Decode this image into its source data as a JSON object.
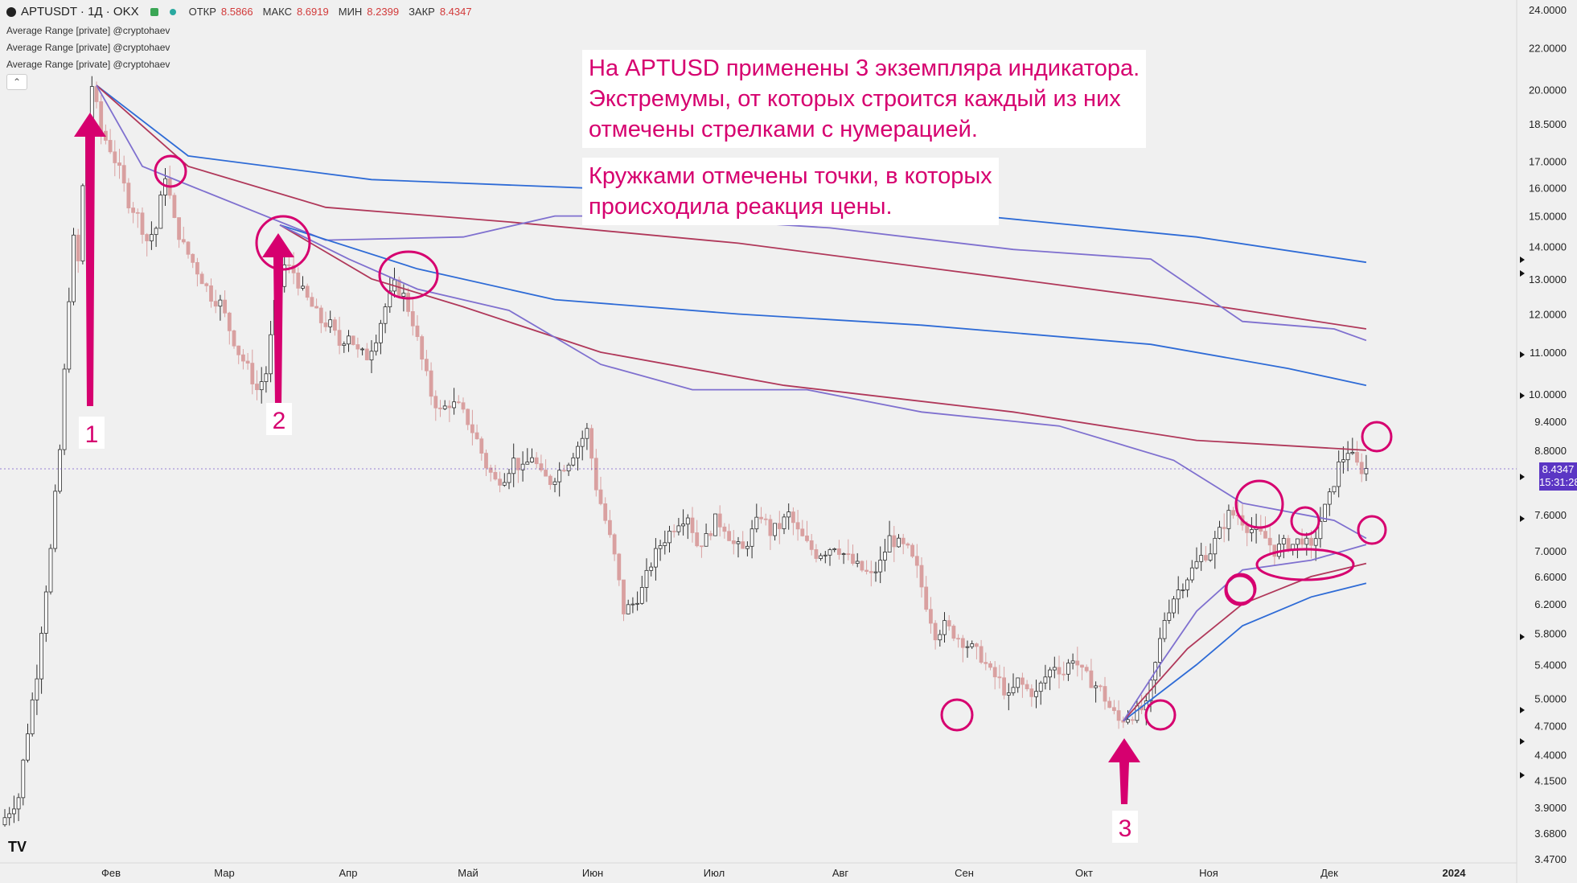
{
  "header": {
    "symbol": "APTUSDT · 1Д · OKX",
    "open_label": "ОТКР",
    "open_value": "8.5866",
    "high_label": "МАКС",
    "high_value": "8.6919",
    "low_label": "МИН",
    "low_value": "8.2399",
    "close_label": "ЗАКР",
    "close_value": "8.4347"
  },
  "indicators": [
    "Average Range [private] @cryptohaev",
    "Average Range [private] @cryptohaev",
    "Average Range [private] @cryptohaev"
  ],
  "collapse_glyph": "⌃",
  "notes": {
    "note1_lines": [
      "На APTUSD применены 3 экземпляра индикатора.",
      "Экстремумы, от которых строится каждый из них",
      "отмечены стрелками с нумерацией."
    ],
    "note2_lines": [
      "Кружками отмечены точки, в которых",
      "происходила реакция цены."
    ]
  },
  "arrow_labels": [
    "1",
    "2",
    "3"
  ],
  "price_badge": {
    "price": "8.4347",
    "timer": "15:31:28"
  },
  "logo": "TV",
  "colors": {
    "background": "#f0f0f0",
    "up_candle": "#2e2e2e",
    "down_candle": "#d9a0a0",
    "annotation": "#d6006f",
    "band_blue": "#2e6bd6",
    "band_red": "#b0385a",
    "band_purple": "#7f70cf",
    "badge": "#5b36c4"
  },
  "chart_data": {
    "type": "candlestick",
    "title": "",
    "y_scale": "log",
    "y_tick_labels": [
      "24.0000",
      "22.0000",
      "20.0000",
      "18.5000",
      "17.0000",
      "16.0000",
      "15.0000",
      "14.0000",
      "13.0000",
      "12.0000",
      "11.0000",
      "10.0000",
      "9.4000",
      "8.8000",
      "7.6000",
      "7.0000",
      "6.6000",
      "6.2000",
      "5.8000",
      "5.4000",
      "5.0000",
      "4.7000",
      "4.4000",
      "4.1500",
      "3.9000",
      "3.6800",
      "3.4700"
    ],
    "x_tick_labels": [
      "Фев",
      "Мар",
      "Апр",
      "Май",
      "Июн",
      "Июл",
      "Авг",
      "Сен",
      "Окт",
      "Ноя",
      "Дек",
      "2024"
    ],
    "price_path": [
      [
        0,
        3.75
      ],
      [
        4,
        4.0
      ],
      [
        8,
        5.3
      ],
      [
        11,
        7.0
      ],
      [
        13,
        8.8
      ],
      [
        14,
        10.5
      ],
      [
        15,
        12.5
      ],
      [
        16,
        14.2
      ],
      [
        17,
        13.5
      ],
      [
        18,
        16.0
      ],
      [
        19,
        18.0
      ],
      [
        20,
        20.2
      ],
      [
        22,
        18.2
      ],
      [
        24,
        17.5
      ],
      [
        26,
        16.6
      ],
      [
        28,
        15.5
      ],
      [
        30,
        15.0
      ],
      [
        32,
        14.2
      ],
      [
        34,
        14.6
      ],
      [
        36,
        16.5
      ],
      [
        38,
        14.8
      ],
      [
        40,
        14.0
      ],
      [
        42,
        13.5
      ],
      [
        44,
        13.0
      ],
      [
        46,
        12.5
      ],
      [
        48,
        12.3
      ],
      [
        50,
        11.6
      ],
      [
        52,
        11.0
      ],
      [
        54,
        10.6
      ],
      [
        56,
        10.1
      ],
      [
        58,
        10.5
      ],
      [
        60,
        12.2
      ],
      [
        62,
        13.4
      ],
      [
        64,
        13.2
      ],
      [
        66,
        12.6
      ],
      [
        68,
        12.2
      ],
      [
        70,
        11.8
      ],
      [
        72,
        11.7
      ],
      [
        74,
        11.2
      ],
      [
        76,
        11.5
      ],
      [
        78,
        11.0
      ],
      [
        80,
        10.9
      ],
      [
        82,
        11.4
      ],
      [
        84,
        12.2
      ],
      [
        86,
        12.8
      ],
      [
        88,
        12.5
      ],
      [
        90,
        11.8
      ],
      [
        92,
        10.8
      ],
      [
        94,
        10.0
      ],
      [
        96,
        9.6
      ],
      [
        98,
        9.8
      ],
      [
        100,
        9.7
      ],
      [
        102,
        9.4
      ],
      [
        104,
        9.0
      ],
      [
        106,
        8.5
      ],
      [
        108,
        8.2
      ],
      [
        110,
        8.3
      ],
      [
        112,
        8.6
      ],
      [
        114,
        8.4
      ],
      [
        116,
        8.7
      ],
      [
        118,
        8.3
      ],
      [
        120,
        8.2
      ],
      [
        122,
        8.4
      ],
      [
        124,
        8.6
      ],
      [
        126,
        8.9
      ],
      [
        128,
        9.2
      ],
      [
        130,
        8.1
      ],
      [
        132,
        7.5
      ],
      [
        134,
        6.9
      ],
      [
        136,
        6.1
      ],
      [
        138,
        6.2
      ],
      [
        140,
        6.4
      ],
      [
        142,
        6.8
      ],
      [
        144,
        7.1
      ],
      [
        146,
        7.3
      ],
      [
        148,
        7.5
      ],
      [
        150,
        7.6
      ],
      [
        152,
        7.1
      ],
      [
        154,
        7.2
      ],
      [
        156,
        7.5
      ],
      [
        158,
        7.4
      ],
      [
        160,
        7.1
      ],
      [
        162,
        7.0
      ],
      [
        164,
        7.3
      ],
      [
        166,
        7.6
      ],
      [
        168,
        7.3
      ],
      [
        170,
        7.4
      ],
      [
        172,
        7.6
      ],
      [
        174,
        7.3
      ],
      [
        176,
        7.1
      ],
      [
        178,
        6.95
      ],
      [
        180,
        7.0
      ],
      [
        182,
        7.1
      ],
      [
        184,
        6.95
      ],
      [
        186,
        6.8
      ],
      [
        188,
        6.7
      ],
      [
        190,
        6.6
      ],
      [
        192,
        6.8
      ],
      [
        194,
        7.2
      ],
      [
        196,
        7.1
      ],
      [
        198,
        7.0
      ],
      [
        200,
        6.7
      ],
      [
        202,
        6.2
      ],
      [
        204,
        5.8
      ],
      [
        206,
        5.9
      ],
      [
        208,
        5.8
      ],
      [
        210,
        5.7
      ],
      [
        212,
        5.6
      ],
      [
        214,
        5.5
      ],
      [
        216,
        5.3
      ],
      [
        218,
        5.2
      ],
      [
        220,
        5.0
      ],
      [
        222,
        5.2
      ],
      [
        224,
        5.1
      ],
      [
        226,
        5.05
      ],
      [
        228,
        5.25
      ],
      [
        230,
        5.4
      ],
      [
        232,
        5.3
      ],
      [
        234,
        5.5
      ],
      [
        236,
        5.3
      ],
      [
        238,
        5.2
      ],
      [
        240,
        5.1
      ],
      [
        242,
        4.9
      ],
      [
        244,
        4.75
      ],
      [
        246,
        4.8
      ],
      [
        248,
        4.85
      ],
      [
        250,
        4.9
      ],
      [
        252,
        5.4
      ],
      [
        254,
        6.0
      ],
      [
        256,
        6.3
      ],
      [
        258,
        6.5
      ],
      [
        260,
        6.7
      ],
      [
        262,
        6.9
      ],
      [
        264,
        7.0
      ],
      [
        266,
        7.3
      ],
      [
        268,
        7.6
      ],
      [
        270,
        7.6
      ],
      [
        272,
        7.4
      ],
      [
        274,
        7.3
      ],
      [
        276,
        7.2
      ],
      [
        278,
        7.0
      ],
      [
        280,
        7.1
      ],
      [
        282,
        7.1
      ],
      [
        284,
        7.2
      ],
      [
        286,
        7.0
      ],
      [
        288,
        7.5
      ],
      [
        290,
        7.9
      ],
      [
        292,
        8.5
      ],
      [
        294,
        8.8
      ],
      [
        296,
        8.5
      ],
      [
        297,
        8.43
      ]
    ],
    "indicator_bands": [
      {
        "anchor": "1",
        "color_blue": [
          [
            20,
            20.2
          ],
          [
            40,
            17.2
          ],
          [
            80,
            16.3
          ],
          [
            140,
            15.9
          ],
          [
            200,
            15.2
          ],
          [
            260,
            14.3
          ],
          [
            297,
            13.5
          ]
        ],
        "color_red": [
          [
            20,
            20.2
          ],
          [
            40,
            16.8
          ],
          [
            70,
            15.3
          ],
          [
            110,
            14.8
          ],
          [
            160,
            14.1
          ],
          [
            220,
            13.0
          ],
          [
            260,
            12.3
          ],
          [
            297,
            11.6
          ]
        ],
        "color_purple": [
          [
            20,
            20.2
          ],
          [
            30,
            16.8
          ],
          [
            40,
            16.1
          ],
          [
            70,
            14.2
          ],
          [
            100,
            14.3
          ],
          [
            120,
            15.0
          ],
          [
            140,
            15.0
          ],
          [
            180,
            14.6
          ],
          [
            220,
            13.9
          ],
          [
            250,
            13.6
          ],
          [
            270,
            11.8
          ],
          [
            290,
            11.6
          ],
          [
            297,
            11.3
          ]
        ]
      },
      {
        "anchor": "2",
        "color_blue": [
          [
            60,
            14.7
          ],
          [
            90,
            13.3
          ],
          [
            120,
            12.4
          ],
          [
            160,
            12.0
          ],
          [
            200,
            11.7
          ],
          [
            250,
            11.2
          ],
          [
            280,
            10.6
          ],
          [
            297,
            10.2
          ]
        ],
        "color_red": [
          [
            60,
            14.7
          ],
          [
            80,
            13.0
          ],
          [
            100,
            12.2
          ],
          [
            130,
            11.0
          ],
          [
            170,
            10.2
          ],
          [
            220,
            9.6
          ],
          [
            260,
            9.0
          ],
          [
            297,
            8.8
          ]
        ],
        "color_purple": [
          [
            60,
            14.7
          ],
          [
            75,
            13.6
          ],
          [
            90,
            12.7
          ],
          [
            110,
            12.1
          ],
          [
            130,
            10.7
          ],
          [
            150,
            10.1
          ],
          [
            175,
            10.1
          ],
          [
            200,
            9.6
          ],
          [
            230,
            9.3
          ],
          [
            255,
            8.6
          ],
          [
            270,
            7.8
          ],
          [
            290,
            7.5
          ],
          [
            297,
            7.2
          ]
        ]
      },
      {
        "anchor": "3",
        "color_blue": [
          [
            244,
            4.75
          ],
          [
            260,
            5.4
          ],
          [
            270,
            5.9
          ],
          [
            285,
            6.3
          ],
          [
            297,
            6.5
          ]
        ],
        "color_red": [
          [
            244,
            4.75
          ],
          [
            258,
            5.6
          ],
          [
            270,
            6.2
          ],
          [
            285,
            6.6
          ],
          [
            297,
            6.8
          ]
        ],
        "color_purple": [
          [
            244,
            4.75
          ],
          [
            252,
            5.4
          ],
          [
            260,
            6.1
          ],
          [
            270,
            6.7
          ],
          [
            285,
            6.85
          ],
          [
            297,
            7.1
          ]
        ]
      }
    ]
  }
}
